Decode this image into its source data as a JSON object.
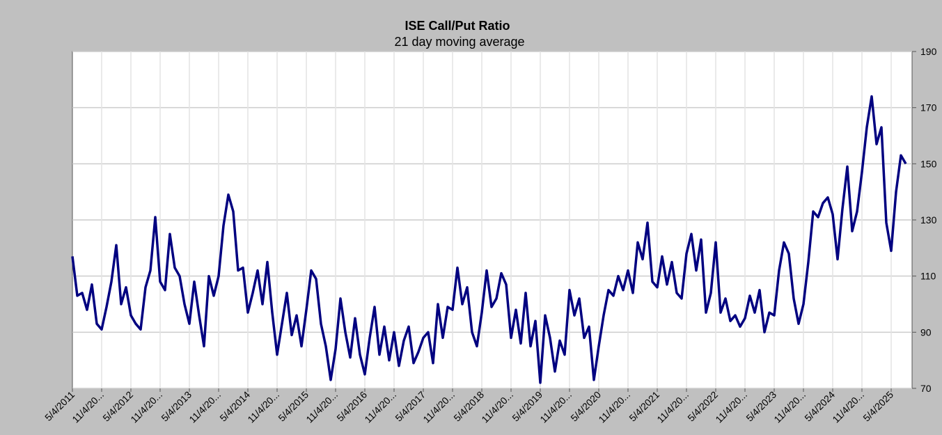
{
  "chart_data": {
    "type": "line",
    "title": "ISE  Call/Put Ratio",
    "subtitle": "21 day moving average",
    "xticks": [
      "5/4/2011",
      "11/4/20...",
      "5/4/2012",
      "11/4/20...",
      "5/4/2013",
      "11/4/20...",
      "5/4/2014",
      "11/4/20...",
      "5/4/2015",
      "11/4/20...",
      "5/4/2016",
      "11/4/20...",
      "5/4/2017",
      "11/4/20...",
      "5/4/2018",
      "11/4/20...",
      "5/4/2019",
      "11/4/20...",
      "5/4/2020",
      "11/4/20...",
      "5/4/2021",
      "11/4/20...",
      "5/4/2022",
      "11/4/20...",
      "5/4/2023",
      "11/4/20...",
      "5/4/2024",
      "11/4/20...",
      "5/4/2025"
    ],
    "values": [
      117,
      103,
      104,
      98,
      107,
      93,
      91,
      99,
      108,
      121,
      100,
      106,
      96,
      93,
      91,
      106,
      112,
      131,
      108,
      105,
      125,
      113,
      110,
      100,
      93,
      108,
      96,
      85,
      110,
      103,
      110,
      128,
      139,
      133,
      112,
      113,
      97,
      104,
      112,
      100,
      115,
      97,
      82,
      93,
      104,
      89,
      96,
      85,
      98,
      112,
      109,
      93,
      85,
      73,
      84,
      102,
      90,
      81,
      95,
      82,
      75,
      88,
      99,
      82,
      92,
      80,
      90,
      78,
      87,
      92,
      79,
      83,
      88,
      90,
      79,
      100,
      88,
      99,
      98,
      113,
      100,
      106,
      90,
      85,
      97,
      112,
      99,
      102,
      111,
      107,
      88,
      98,
      86,
      104,
      85,
      94,
      72,
      96,
      88,
      76,
      87,
      82,
      105,
      96,
      102,
      88,
      92,
      73,
      85,
      96,
      105,
      103,
      110,
      105,
      112,
      104,
      122,
      116,
      129,
      108,
      106,
      117,
      107,
      115,
      104,
      102,
      118,
      125,
      112,
      123,
      97,
      104,
      122,
      97,
      102,
      94,
      96,
      92,
      95,
      103,
      97,
      105,
      90,
      97,
      96,
      112,
      122,
      118,
      102,
      93,
      100,
      115,
      133,
      131,
      136,
      138,
      132,
      116,
      134,
      149,
      126,
      133,
      147,
      163,
      174,
      157,
      163,
      129,
      119,
      140,
      153,
      150
    ],
    "color": "#000080",
    "ylim": [
      70,
      190
    ],
    "yticks": [
      70,
      90,
      110,
      130,
      150,
      170,
      190
    ],
    "grid": true
  }
}
